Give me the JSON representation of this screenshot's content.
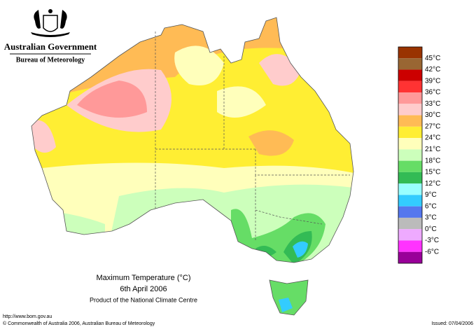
{
  "header": {
    "title": "Australian Government",
    "subtitle": "Bureau of Meteorology"
  },
  "legend": {
    "top_color": "#993300",
    "items": [
      {
        "label": "45°C",
        "color": "#996633"
      },
      {
        "label": "42°C",
        "color": "#cc0000"
      },
      {
        "label": "39°C",
        "color": "#ff3333"
      },
      {
        "label": "36°C",
        "color": "#ff9999"
      },
      {
        "label": "33°C",
        "color": "#ffcccc"
      },
      {
        "label": "30°C",
        "color": "#ffbb55"
      },
      {
        "label": "27°C",
        "color": "#ffee33"
      },
      {
        "label": "24°C",
        "color": "#ffffbb"
      },
      {
        "label": "21°C",
        "color": "#ccffbb"
      },
      {
        "label": "18°C",
        "color": "#66dd66"
      },
      {
        "label": "15°C",
        "color": "#33bb55"
      },
      {
        "label": "12°C",
        "color": "#99ffff"
      },
      {
        "label": "9°C",
        "color": "#33ccff"
      },
      {
        "label": "6°C",
        "color": "#5577ee"
      },
      {
        "label": "3°C",
        "color": "#bbbbbb"
      },
      {
        "label": "0°C",
        "color": "#eeaaff"
      },
      {
        "label": "-3°C",
        "color": "#ff33ff"
      },
      {
        "label": "-6°C",
        "color": "#990099"
      }
    ]
  },
  "caption": {
    "title": "Maximum Temperature (°C)",
    "date": "6th April 2006",
    "product": "Product of the National Climate Centre"
  },
  "footer": {
    "url": "http://www.bom.gov.au",
    "copyright": "© Commonwealth of Australia 2006, Australian Bureau of Meteorology",
    "issued": "Issued: 07/04/2006"
  }
}
